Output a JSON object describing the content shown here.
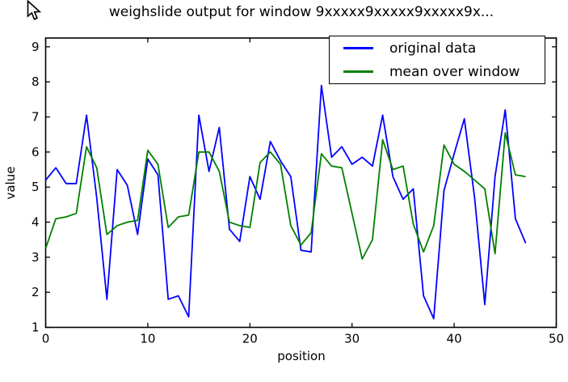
{
  "chart_data": {
    "type": "line",
    "title": "weighslide output for window 9xxxxx9xxxxx9xxxxx9x...",
    "xlabel": "position",
    "ylabel": "value",
    "xlim": [
      0,
      50
    ],
    "ylim": [
      1,
      9.25
    ],
    "x_ticks": [
      0,
      10,
      20,
      30,
      40,
      50
    ],
    "y_ticks": [
      1,
      2,
      3,
      4,
      5,
      6,
      7,
      8,
      9
    ],
    "grid": false,
    "legend_position": "upper right",
    "background_color": "#ffffff",
    "frame_color": "#000000",
    "x": [
      0,
      1,
      2,
      3,
      4,
      5,
      6,
      7,
      8,
      9,
      10,
      11,
      12,
      13,
      14,
      15,
      16,
      17,
      18,
      19,
      20,
      21,
      22,
      23,
      24,
      25,
      26,
      27,
      28,
      29,
      30,
      31,
      32,
      33,
      34,
      35,
      36,
      37,
      38,
      39,
      40,
      41,
      42,
      43,
      44,
      45,
      46,
      47
    ],
    "series": [
      {
        "name": "original data",
        "color": "#0000ff",
        "values": [
          5.2,
          5.55,
          5.1,
          5.1,
          7.05,
          4.7,
          1.8,
          5.5,
          5.05,
          3.65,
          5.8,
          5.35,
          1.8,
          1.9,
          1.3,
          7.05,
          5.45,
          6.7,
          3.8,
          3.45,
          5.3,
          4.65,
          6.3,
          5.75,
          5.3,
          3.2,
          3.15,
          7.9,
          5.85,
          6.15,
          5.65,
          5.85,
          5.6,
          7.05,
          5.3,
          4.65,
          4.95,
          1.9,
          1.25,
          4.9,
          5.95,
          6.95,
          4.7,
          1.65,
          5.3,
          7.2,
          4.1,
          3.4
        ]
      },
      {
        "name": "mean over window",
        "color": "#008000",
        "values": [
          3.25,
          4.1,
          4.15,
          4.25,
          6.15,
          5.55,
          3.65,
          3.9,
          4.0,
          4.05,
          6.05,
          5.65,
          3.85,
          4.15,
          4.2,
          6.0,
          6.0,
          5.45,
          4.0,
          3.9,
          3.85,
          5.7,
          6.0,
          5.65,
          3.9,
          3.35,
          3.7,
          5.95,
          5.6,
          5.55,
          4.25,
          2.95,
          3.5,
          6.35,
          5.5,
          5.6,
          3.95,
          3.15,
          3.9,
          6.2,
          5.65,
          5.45,
          5.2,
          4.95,
          3.1,
          6.55,
          5.35,
          5.3
        ]
      }
    ]
  },
  "cursor": {
    "icon": "mouse-pointer"
  }
}
